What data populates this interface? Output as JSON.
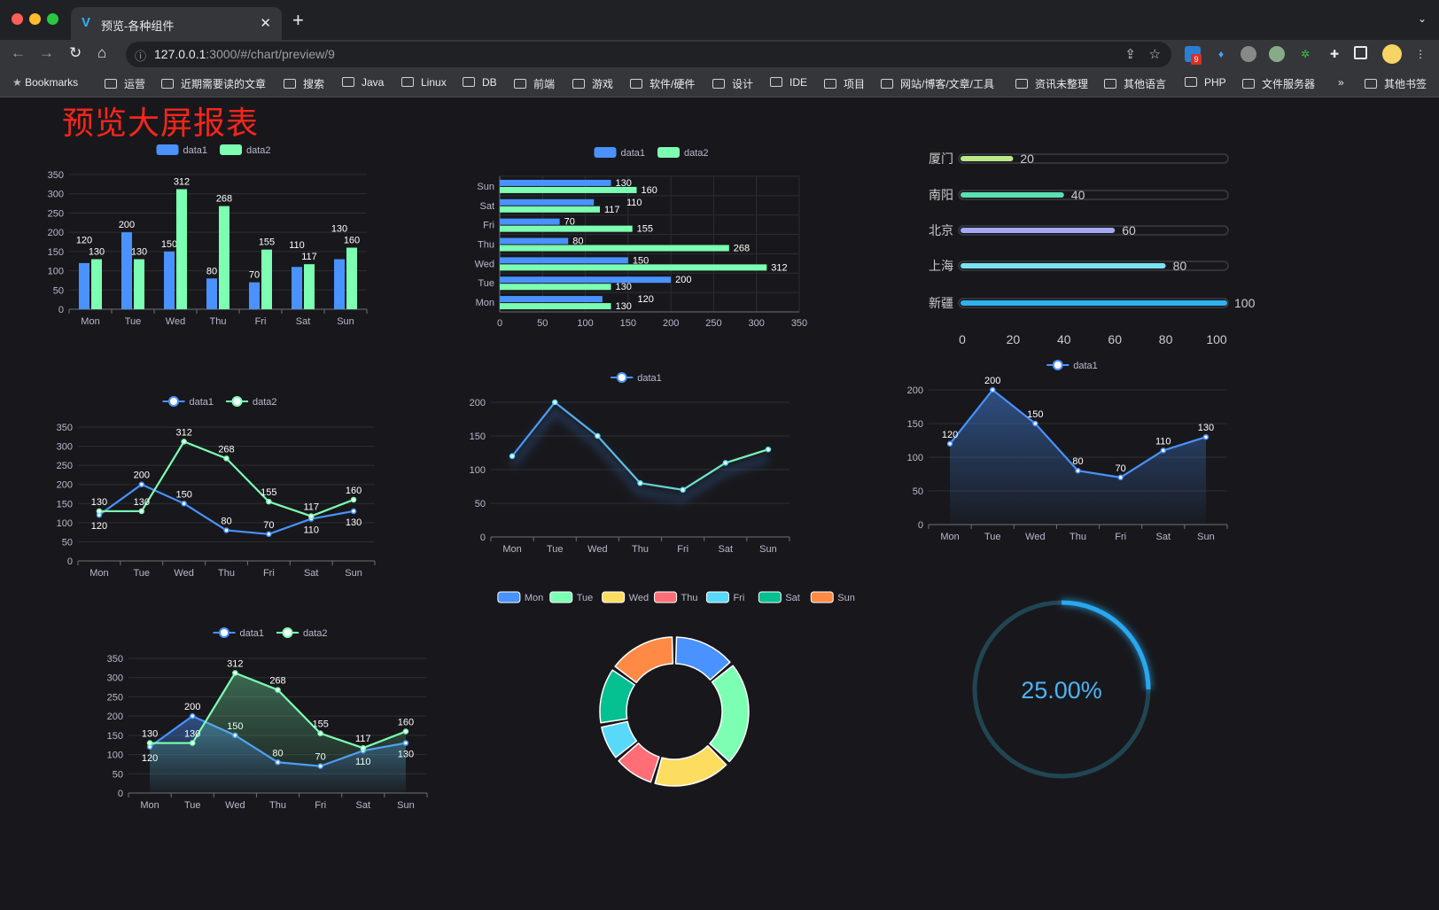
{
  "browser": {
    "tab_title": "预览-各种组件",
    "url_host": "127.0.0.1",
    "url_rest": ":3000/#/chart/preview/9",
    "extension_badge": "9",
    "bookmarks": [
      "Bookmarks",
      "运营",
      "近期需要读的文章",
      "搜索",
      "Java",
      "Linux",
      "DB",
      "前端",
      "游戏",
      "软件/硬件",
      "设计",
      "IDE",
      "项目",
      "网站/博客/文章/工具",
      "资讯未整理",
      "其他语言",
      "PHP",
      "文件服务器"
    ],
    "bookmarks_overflow": "»",
    "other_bookmarks": "其他书签"
  },
  "page": {
    "title": "预览大屏报表"
  },
  "colors": {
    "data1": "#4992ff",
    "data2": "#7cffb2",
    "background": "#18181c",
    "title": "#f5261b",
    "gauge": "#29a8f0",
    "gauge_track": "#214552"
  },
  "chart_data": [
    {
      "id": "bar-vertical",
      "type": "bar",
      "categories": [
        "Mon",
        "Tue",
        "Wed",
        "Thu",
        "Fri",
        "Sat",
        "Sun"
      ],
      "series": [
        {
          "name": "data1",
          "values": [
            120,
            200,
            150,
            80,
            70,
            110,
            130
          ]
        },
        {
          "name": "data2",
          "values": [
            130,
            130,
            312,
            268,
            155,
            117,
            160
          ]
        }
      ],
      "ylim": [
        0,
        350
      ],
      "yticks": [
        0,
        50,
        100,
        150,
        200,
        250,
        300,
        350
      ],
      "legend": "top",
      "grid": true,
      "labels": true
    },
    {
      "id": "bar-horizontal",
      "type": "bar",
      "orientation": "horizontal",
      "categories": [
        "Mon",
        "Tue",
        "Wed",
        "Thu",
        "Fri",
        "Sat",
        "Sun"
      ],
      "series": [
        {
          "name": "data1",
          "values": [
            120,
            200,
            150,
            80,
            70,
            110,
            130
          ]
        },
        {
          "name": "data2",
          "values": [
            130,
            130,
            312,
            268,
            155,
            117,
            160
          ]
        }
      ],
      "xlim": [
        0,
        350
      ],
      "xticks": [
        0,
        50,
        100,
        150,
        200,
        250,
        300,
        350
      ],
      "legend": "top",
      "grid": true,
      "labels": true
    },
    {
      "id": "progress-bars",
      "type": "bar",
      "orientation": "horizontal",
      "categories": [
        "厦门",
        "南阳",
        "北京",
        "上海",
        "新疆"
      ],
      "values": [
        20,
        40,
        60,
        80,
        100
      ],
      "colors": [
        "#b8e986",
        "#5be0b3",
        "#a5a8f5",
        "#7ae3f2",
        "#2fb3ee"
      ],
      "xlim": [
        0,
        100
      ],
      "xticks": [
        0,
        20,
        40,
        60,
        80,
        100
      ],
      "labels": true
    },
    {
      "id": "line-two",
      "type": "line",
      "categories": [
        "Mon",
        "Tue",
        "Wed",
        "Thu",
        "Fri",
        "Sat",
        "Sun"
      ],
      "series": [
        {
          "name": "data1",
          "values": [
            120,
            200,
            150,
            80,
            70,
            110,
            130
          ]
        },
        {
          "name": "data2",
          "values": [
            130,
            130,
            312,
            268,
            155,
            117,
            160
          ]
        }
      ],
      "ylim": [
        0,
        350
      ],
      "yticks": [
        0,
        50,
        100,
        150,
        200,
        250,
        300,
        350
      ],
      "legend": "top",
      "grid": true,
      "labels": true,
      "area": false
    },
    {
      "id": "line-gradient",
      "type": "line",
      "categories": [
        "Mon",
        "Tue",
        "Wed",
        "Thu",
        "Fri",
        "Sat",
        "Sun"
      ],
      "series": [
        {
          "name": "data1",
          "values": [
            120,
            200,
            150,
            80,
            70,
            110,
            130
          ]
        }
      ],
      "ylim": [
        0,
        200
      ],
      "yticks": [
        0,
        50,
        100,
        150,
        200
      ],
      "legend": "top",
      "grid": true,
      "labels": false,
      "area": false
    },
    {
      "id": "area-one",
      "type": "area",
      "categories": [
        "Mon",
        "Tue",
        "Wed",
        "Thu",
        "Fri",
        "Sat",
        "Sun"
      ],
      "series": [
        {
          "name": "data1",
          "values": [
            120,
            200,
            150,
            80,
            70,
            110,
            130
          ]
        }
      ],
      "ylim": [
        0,
        200
      ],
      "yticks": [
        0,
        50,
        100,
        150,
        200
      ],
      "legend": "top",
      "grid": true,
      "labels": true,
      "area": true
    },
    {
      "id": "area-two",
      "type": "area",
      "categories": [
        "Mon",
        "Tue",
        "Wed",
        "Thu",
        "Fri",
        "Sat",
        "Sun"
      ],
      "series": [
        {
          "name": "data1",
          "values": [
            120,
            200,
            150,
            80,
            70,
            110,
            130
          ]
        },
        {
          "name": "data2",
          "values": [
            130,
            130,
            312,
            268,
            155,
            117,
            160
          ]
        }
      ],
      "ylim": [
        0,
        350
      ],
      "yticks": [
        0,
        50,
        100,
        150,
        200,
        250,
        300,
        350
      ],
      "legend": "top",
      "grid": true,
      "labels": true,
      "area": true
    },
    {
      "id": "donut",
      "type": "pie",
      "categories": [
        "Mon",
        "Tue",
        "Wed",
        "Thu",
        "Fri",
        "Sat",
        "Sun"
      ],
      "values": [
        120,
        200,
        150,
        80,
        70,
        110,
        130
      ],
      "colors": [
        "#4992ff",
        "#7cffb2",
        "#fddd60",
        "#ff6e76",
        "#58d9f9",
        "#05c091",
        "#ff8a45"
      ],
      "legend": "top"
    },
    {
      "id": "gauge",
      "type": "gauge",
      "value": 0.25,
      "label": "25.00%"
    }
  ]
}
